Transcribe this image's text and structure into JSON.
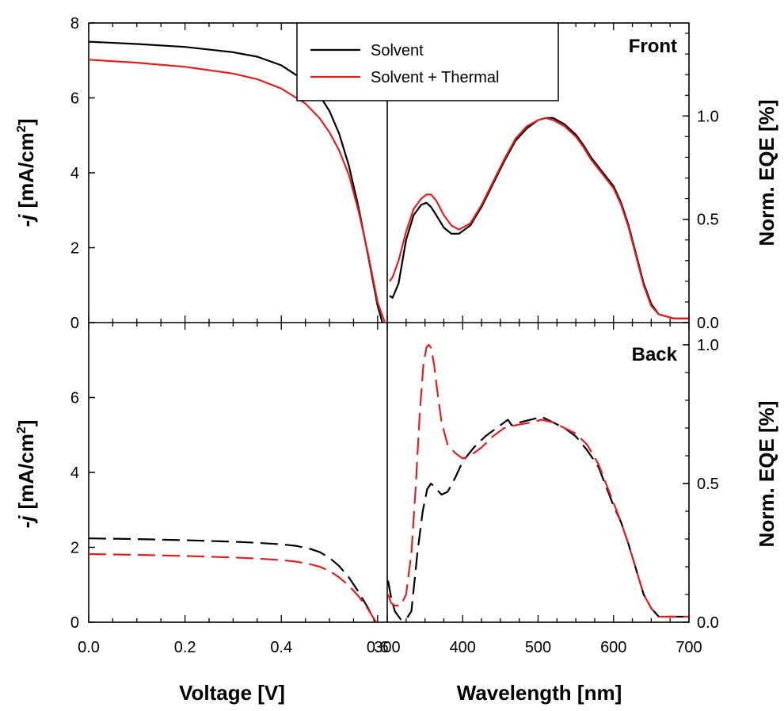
{
  "colors": {
    "solvent": "#000000",
    "solvent_thermal": "#e02020",
    "axis": "#000000"
  },
  "legend": {
    "entries": [
      "Solvent",
      "Solvent + Thermal"
    ],
    "placement": "top-center"
  },
  "labels": {
    "x_left": "Voltage [V]",
    "x_right": "Wavelength [nm]",
    "y_left_top_pre": "-",
    "y_left_top_var": "j",
    "y_left_top_unit": "[mA/cm",
    "y_left_top_sup": "2",
    "y_left_top_close": "]",
    "y_right": "Norm. EQE [%]",
    "front": "Front",
    "back": "Back"
  },
  "chart_data": [
    {
      "panel": "top-left",
      "type": "line",
      "xlabel": "Voltage [V]",
      "ylabel": "-j [mA/cm2]",
      "xlim": [
        0,
        0.6
      ],
      "ylim": [
        0,
        8
      ],
      "yticks": [
        0,
        2,
        4,
        6,
        8
      ],
      "line_style": "solid",
      "series": [
        {
          "name": "Solvent",
          "x": [
            0,
            0.1,
            0.2,
            0.3,
            0.35,
            0.4,
            0.45,
            0.48,
            0.5,
            0.52,
            0.54,
            0.56,
            0.58,
            0.6,
            0.61
          ],
          "y": [
            7.5,
            7.44,
            7.36,
            7.22,
            7.1,
            6.87,
            6.45,
            6.05,
            5.65,
            5.05,
            4.2,
            3.1,
            1.8,
            0.45,
            0.0
          ]
        },
        {
          "name": "Solvent + Thermal",
          "x": [
            0,
            0.1,
            0.2,
            0.3,
            0.35,
            0.4,
            0.45,
            0.48,
            0.5,
            0.52,
            0.54,
            0.56,
            0.58,
            0.6,
            0.615
          ],
          "y": [
            7.02,
            6.94,
            6.83,
            6.65,
            6.5,
            6.25,
            5.85,
            5.45,
            5.08,
            4.6,
            3.95,
            3.0,
            1.85,
            0.55,
            0.0
          ]
        }
      ]
    },
    {
      "panel": "top-right",
      "label": "Front",
      "type": "line",
      "xlabel": "Wavelength [nm]",
      "ylabel": "Norm. EQE [%]",
      "xlim": [
        300,
        700
      ],
      "ylim": [
        0,
        1.45
      ],
      "yticks": [
        0.0,
        0.5,
        1.0
      ],
      "line_style": "solid",
      "series": [
        {
          "name": "Solvent",
          "x": [
            303,
            307,
            315,
            325,
            335,
            345,
            352,
            358,
            365,
            375,
            385,
            395,
            410,
            425,
            440,
            455,
            470,
            485,
            500,
            510,
            520,
            535,
            550,
            560,
            570,
            585,
            600,
            610,
            620,
            630,
            640,
            650,
            660,
            670,
            680,
            690,
            700
          ],
          "y": [
            0.13,
            0.12,
            0.19,
            0.4,
            0.52,
            0.57,
            0.58,
            0.56,
            0.52,
            0.46,
            0.43,
            0.43,
            0.47,
            0.56,
            0.67,
            0.78,
            0.88,
            0.94,
            0.98,
            0.99,
            0.99,
            0.96,
            0.91,
            0.86,
            0.8,
            0.73,
            0.66,
            0.58,
            0.47,
            0.33,
            0.19,
            0.09,
            0.04,
            0.03,
            0.02,
            0.02,
            0.02
          ]
        },
        {
          "name": "Solvent + Thermal",
          "x": [
            303,
            307,
            315,
            325,
            335,
            345,
            352,
            358,
            365,
            375,
            385,
            395,
            410,
            425,
            440,
            455,
            470,
            485,
            500,
            510,
            520,
            535,
            550,
            560,
            570,
            585,
            600,
            610,
            620,
            630,
            640,
            650,
            660,
            670,
            680,
            690,
            700
          ],
          "y": [
            0.2,
            0.22,
            0.3,
            0.44,
            0.55,
            0.6,
            0.62,
            0.62,
            0.59,
            0.52,
            0.47,
            0.45,
            0.48,
            0.57,
            0.68,
            0.79,
            0.89,
            0.95,
            0.98,
            0.99,
            0.98,
            0.95,
            0.9,
            0.85,
            0.79,
            0.72,
            0.65,
            0.57,
            0.46,
            0.32,
            0.18,
            0.08,
            0.04,
            0.03,
            0.02,
            0.02,
            0.02
          ]
        }
      ]
    },
    {
      "panel": "bottom-left",
      "type": "line",
      "xlabel": "Voltage [V]",
      "ylabel": "-j [mA/cm2]",
      "xlim": [
        0,
        0.6
      ],
      "ylim": [
        0,
        8
      ],
      "yticks": [
        0,
        2,
        4,
        6
      ],
      "xticks": [
        0.0,
        0.2,
        0.4,
        0.6
      ],
      "line_style": "dashed",
      "series": [
        {
          "name": "Solvent",
          "x": [
            0,
            0.1,
            0.2,
            0.3,
            0.35,
            0.4,
            0.43,
            0.46,
            0.48,
            0.5,
            0.52,
            0.54,
            0.56,
            0.58,
            0.595
          ],
          "y": [
            2.24,
            2.22,
            2.19,
            2.15,
            2.12,
            2.08,
            2.04,
            1.96,
            1.87,
            1.72,
            1.5,
            1.2,
            0.82,
            0.38,
            0.0
          ]
        },
        {
          "name": "Solvent + Thermal",
          "x": [
            0,
            0.1,
            0.2,
            0.3,
            0.35,
            0.4,
            0.43,
            0.46,
            0.48,
            0.5,
            0.52,
            0.54,
            0.56,
            0.58,
            0.597
          ],
          "y": [
            1.82,
            1.8,
            1.77,
            1.73,
            1.7,
            1.66,
            1.62,
            1.55,
            1.48,
            1.37,
            1.2,
            0.98,
            0.7,
            0.35,
            0.0
          ]
        }
      ]
    },
    {
      "panel": "bottom-right",
      "label": "Back",
      "type": "line",
      "xlabel": "Wavelength [nm]",
      "ylabel": "Norm. EQE [%]",
      "xlim": [
        300,
        700
      ],
      "ylim": [
        0,
        1.08
      ],
      "yticks": [
        0.0,
        0.5,
        1.0
      ],
      "xticks": [
        300,
        400,
        500,
        600,
        700
      ],
      "line_style": "dashed",
      "series": [
        {
          "name": "Solvent",
          "x": [
            301,
            305,
            310,
            318,
            325,
            332,
            340,
            347,
            353,
            358,
            365,
            372,
            380,
            390,
            400,
            415,
            430,
            445,
            455,
            460,
            465,
            475,
            490,
            505,
            520,
            535,
            550,
            565,
            580,
            590,
            600,
            610,
            620,
            630,
            640,
            650,
            660,
            670,
            680,
            690,
            700
          ],
          "y": [
            0.15,
            0.09,
            0.04,
            0.01,
            0.01,
            0.04,
            0.25,
            0.4,
            0.48,
            0.5,
            0.48,
            0.46,
            0.47,
            0.52,
            0.58,
            0.63,
            0.67,
            0.7,
            0.72,
            0.73,
            0.71,
            0.72,
            0.73,
            0.74,
            0.72,
            0.7,
            0.67,
            0.62,
            0.56,
            0.49,
            0.42,
            0.36,
            0.28,
            0.19,
            0.1,
            0.05,
            0.02,
            0.02,
            0.02,
            0.02,
            0.02
          ]
        },
        {
          "name": "Solvent + Thermal",
          "x": [
            301,
            305,
            310,
            318,
            325,
            332,
            338,
            343,
            348,
            352,
            355,
            358,
            362,
            366,
            372,
            380,
            390,
            400,
            410,
            425,
            440,
            455,
            470,
            490,
            505,
            520,
            535,
            550,
            565,
            580,
            590,
            600,
            610,
            620,
            630,
            640,
            650,
            660,
            670,
            680,
            690,
            700
          ],
          "y": [
            0.1,
            0.07,
            0.06,
            0.06,
            0.1,
            0.25,
            0.5,
            0.75,
            0.93,
            0.99,
            1.0,
            0.99,
            0.93,
            0.84,
            0.72,
            0.64,
            0.61,
            0.59,
            0.6,
            0.63,
            0.67,
            0.7,
            0.71,
            0.72,
            0.73,
            0.72,
            0.7,
            0.68,
            0.64,
            0.57,
            0.5,
            0.43,
            0.36,
            0.28,
            0.19,
            0.1,
            0.05,
            0.02,
            0.02,
            0.02,
            0.02,
            0.02
          ]
        }
      ]
    }
  ]
}
